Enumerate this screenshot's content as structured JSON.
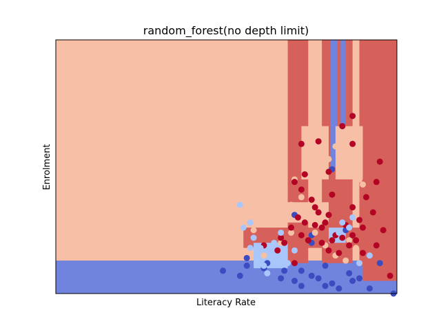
{
  "chart_data": {
    "type": "scatter",
    "title": "random_forest(no depth limit)",
    "xlabel": "Literacy Rate",
    "ylabel": "Enrolment",
    "xlim": [
      0,
      1
    ],
    "ylim": [
      0,
      1
    ],
    "xticks": [],
    "yticks": [],
    "grid": false,
    "legend": "none",
    "colors": {
      "class_0_region": "#7083dd",
      "class_1_region": "#f6bfa6",
      "class_2_region": "#d6605a",
      "class_3_region": "#a9c6fb",
      "class_0_point": "#3b4cc0",
      "class_1_point": "#f5c0a4",
      "class_2_point": "#b40426",
      "class_3_point": "#aac7fd"
    },
    "decision_regions": [
      {
        "class": 1,
        "x": [
          0.0,
          1.0
        ],
        "y": [
          0.0,
          1.0
        ]
      },
      {
        "class": 0,
        "x": [
          0.0,
          1.0
        ],
        "y": [
          0.0,
          0.13
        ]
      },
      {
        "class": 2,
        "x": [
          0.68,
          0.74
        ],
        "y": [
          0.12,
          1.0
        ]
      },
      {
        "class": 2,
        "x": [
          0.78,
          0.87
        ],
        "y": [
          0.12,
          1.0
        ]
      },
      {
        "class": 2,
        "x": [
          0.89,
          1.0
        ],
        "y": [
          0.05,
          1.0
        ]
      },
      {
        "class": 0,
        "x": [
          0.805,
          0.825
        ],
        "y": [
          0.5,
          1.0
        ]
      },
      {
        "class": 0,
        "x": [
          0.835,
          0.85
        ],
        "y": [
          0.65,
          1.0
        ]
      },
      {
        "class": 1,
        "x": [
          0.72,
          0.8
        ],
        "y": [
          0.45,
          0.66
        ]
      },
      {
        "class": 1,
        "x": [
          0.82,
          0.9
        ],
        "y": [
          0.45,
          0.66
        ]
      },
      {
        "class": 2,
        "x": [
          0.55,
          0.9
        ],
        "y": [
          0.18,
          0.26
        ]
      },
      {
        "class": 1,
        "x": [
          0.62,
          0.8
        ],
        "y": [
          0.28,
          0.36
        ]
      },
      {
        "class": 3,
        "x": [
          0.58,
          0.68
        ],
        "y": [
          0.1,
          0.2
        ]
      },
      {
        "class": 3,
        "x": [
          0.8,
          0.85
        ],
        "y": [
          0.2,
          0.26
        ]
      },
      {
        "class": 0,
        "x": [
          0.75,
          0.9
        ],
        "y": [
          0.04,
          0.11
        ]
      }
    ],
    "series": [
      {
        "class": 0,
        "points": [
          [
            0.49,
            0.09
          ],
          [
            0.54,
            0.07
          ],
          [
            0.56,
            0.11
          ],
          [
            0.61,
            0.1
          ],
          [
            0.66,
            0.06
          ],
          [
            0.7,
            0.05
          ],
          [
            0.72,
            0.09
          ],
          [
            0.75,
            0.07
          ],
          [
            0.77,
            0.06
          ],
          [
            0.79,
            0.03
          ],
          [
            0.81,
            0.04
          ],
          [
            0.83,
            0.02
          ],
          [
            0.86,
            0.08
          ],
          [
            0.87,
            0.05
          ],
          [
            0.89,
            0.06
          ],
          [
            0.92,
            0.02
          ],
          [
            0.95,
            0.12
          ],
          [
            0.99,
            0.0
          ],
          [
            0.7,
            0.31
          ],
          [
            0.85,
            0.25
          ],
          [
            0.81,
            0.49
          ],
          [
            0.84,
            0.66
          ],
          [
            0.75,
            0.2
          ],
          [
            0.62,
            0.12
          ],
          [
            0.72,
            0.03
          ],
          [
            0.79,
            0.11
          ],
          [
            0.67,
            0.09
          ],
          [
            0.75,
            0.23
          ],
          [
            0.56,
            0.14
          ]
        ]
      },
      {
        "class": 1,
        "points": [
          [
            0.5,
            0.15
          ],
          [
            0.53,
            0.23
          ],
          [
            0.55,
            0.3
          ],
          [
            0.57,
            0.36
          ],
          [
            0.6,
            0.38
          ],
          [
            0.62,
            0.33
          ],
          [
            0.66,
            0.3
          ],
          [
            0.69,
            0.24
          ],
          [
            0.72,
            0.38
          ],
          [
            0.75,
            0.42
          ],
          [
            0.77,
            0.48
          ],
          [
            0.78,
            0.56
          ],
          [
            0.8,
            0.53
          ],
          [
            0.82,
            0.58
          ],
          [
            0.84,
            0.6
          ],
          [
            0.87,
            0.62
          ],
          [
            0.89,
            0.45
          ],
          [
            0.9,
            0.43
          ],
          [
            0.64,
            0.44
          ],
          [
            0.69,
            0.35
          ],
          [
            0.73,
            0.29
          ],
          [
            0.76,
            0.24
          ],
          [
            0.79,
            0.19
          ],
          [
            0.82,
            0.15
          ],
          [
            0.85,
            0.13
          ],
          [
            0.88,
            0.18
          ],
          [
            0.86,
            0.21
          ],
          [
            0.7,
            0.45
          ],
          [
            0.66,
            0.2
          ],
          [
            0.58,
            0.25
          ],
          [
            0.61,
            0.15
          ]
        ]
      },
      {
        "class": 2,
        "points": [
          [
            0.72,
            0.59
          ],
          [
            0.73,
            0.47
          ],
          [
            0.7,
            0.44
          ],
          [
            0.8,
            0.48
          ],
          [
            0.84,
            0.66
          ],
          [
            0.87,
            0.7
          ],
          [
            0.81,
            0.39
          ],
          [
            0.87,
            0.34
          ],
          [
            0.91,
            0.38
          ],
          [
            0.94,
            0.44
          ],
          [
            0.96,
            0.25
          ],
          [
            0.98,
            0.07
          ],
          [
            0.75,
            0.37
          ],
          [
            0.73,
            0.28
          ],
          [
            0.76,
            0.27
          ],
          [
            0.78,
            0.2
          ],
          [
            0.8,
            0.17
          ],
          [
            0.82,
            0.23
          ],
          [
            0.84,
            0.22
          ],
          [
            0.86,
            0.19
          ],
          [
            0.69,
            0.26
          ],
          [
            0.67,
            0.2
          ],
          [
            0.61,
            0.19
          ],
          [
            0.65,
            0.17
          ],
          [
            0.7,
            0.12
          ],
          [
            0.72,
            0.23
          ],
          [
            0.76,
            0.34
          ],
          [
            0.89,
            0.29
          ],
          [
            0.94,
            0.19
          ],
          [
            0.95,
            0.52
          ],
          [
            0.71,
            0.3
          ],
          [
            0.77,
            0.32
          ],
          [
            0.79,
            0.28
          ],
          [
            0.81,
            0.21
          ],
          [
            0.83,
            0.16
          ],
          [
            0.88,
            0.21
          ],
          [
            0.9,
            0.26
          ],
          [
            0.74,
            0.21
          ],
          [
            0.66,
            0.22
          ],
          [
            0.72,
            0.41
          ],
          [
            0.77,
            0.6
          ],
          [
            0.87,
            0.59
          ],
          [
            0.93,
            0.32
          ],
          [
            0.87,
            0.23
          ],
          [
            0.85,
            0.27
          ],
          [
            0.8,
            0.31
          ],
          [
            0.78,
            0.26
          ],
          [
            0.9,
            0.16
          ]
        ]
      },
      {
        "class": 3,
        "points": [
          [
            0.54,
            0.35
          ],
          [
            0.57,
            0.28
          ],
          [
            0.58,
            0.22
          ],
          [
            0.6,
            0.18
          ],
          [
            0.59,
            0.14
          ],
          [
            0.61,
            0.11
          ],
          [
            0.62,
            0.08
          ],
          [
            0.63,
            0.14
          ],
          [
            0.64,
            0.2
          ],
          [
            0.66,
            0.24
          ],
          [
            0.68,
            0.12
          ],
          [
            0.7,
            0.17
          ],
          [
            0.83,
            0.24
          ],
          [
            0.84,
            0.28
          ],
          [
            0.86,
            0.26
          ],
          [
            0.87,
            0.3
          ],
          [
            0.89,
            0.12
          ],
          [
            0.92,
            0.15
          ],
          [
            0.55,
            0.26
          ],
          [
            0.57,
            0.18
          ]
        ]
      }
    ]
  }
}
